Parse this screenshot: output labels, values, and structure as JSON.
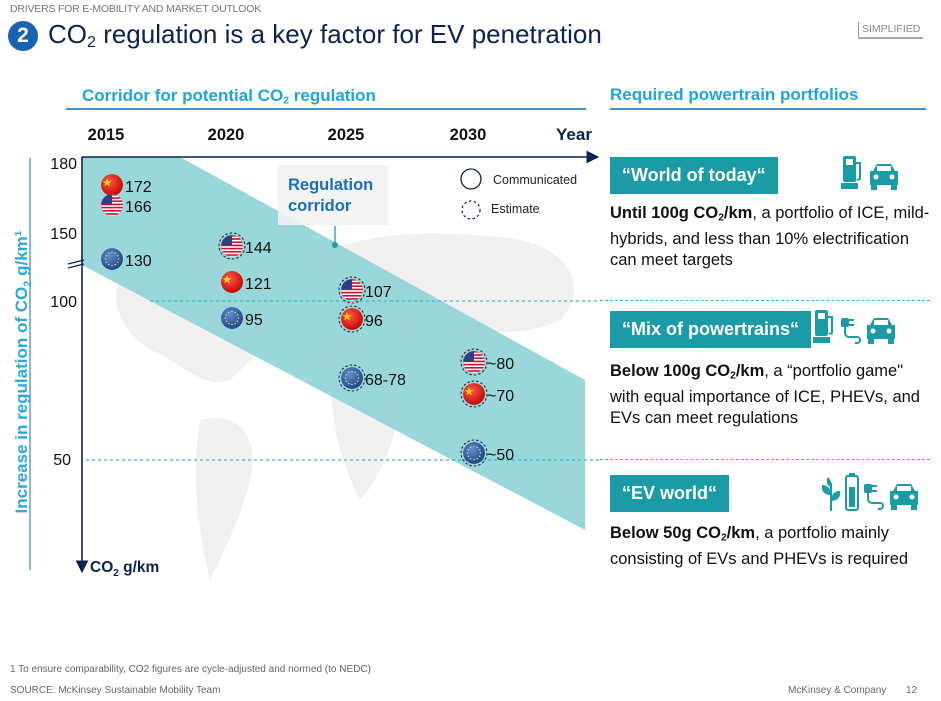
{
  "header": {
    "kicker": "DRIVERS FOR E-MOBILITY AND MARKET OUTLOOK",
    "number": "2",
    "title_pre": "CO",
    "title_sub": "2",
    "title_post": " regulation is a key factor for EV penetration",
    "badge": "SIMPLIFIED"
  },
  "left_section": {
    "heading_pre": "Corridor for potential CO",
    "heading_sub": "2",
    "heading_post": " regulation"
  },
  "chart_data": {
    "type": "scatter",
    "x_ticks": [
      "2015",
      "2020",
      "2025",
      "2030"
    ],
    "xlabel": "Year",
    "y_ticks": [
      180,
      150,
      100,
      50
    ],
    "ylabel_pre": "Increase in regulation of CO",
    "ylabel_sub": "2",
    "ylabel_post": " g/km¹",
    "y_unit_pre": "CO",
    "y_unit_sub": "2",
    "y_unit_post": " g/km",
    "y_axis_break": true,
    "y_inverted": true,
    "corridor_label_line1": "Regulation",
    "corridor_label_line2": "corridor",
    "legend": {
      "communicated": "Communicated",
      "estimate": "Estimate",
      "placement": "top-right"
    },
    "colors": {
      "corridor": "#8fd3d6",
      "axis": "#0b2350",
      "guide": "#3fb8c5"
    },
    "points": [
      {
        "year": "2015",
        "flag": "china-flag",
        "value": 172,
        "label": "172",
        "type": "communicated"
      },
      {
        "year": "2015",
        "flag": "usa-flag",
        "value": 166,
        "label": "166",
        "type": "communicated"
      },
      {
        "year": "2015",
        "flag": "eu-flag",
        "value": 130,
        "label": "130",
        "type": "communicated"
      },
      {
        "year": "2020",
        "flag": "usa-flag",
        "value": 144,
        "label": "144",
        "type": "estimate"
      },
      {
        "year": "2020",
        "flag": "china-flag",
        "value": 121,
        "label": "121",
        "type": "communicated"
      },
      {
        "year": "2020",
        "flag": "eu-flag",
        "value": 95,
        "label": "95",
        "type": "communicated"
      },
      {
        "year": "2025",
        "flag": "usa-flag",
        "value": 107,
        "label": "107",
        "type": "estimate"
      },
      {
        "year": "2025",
        "flag": "china-flag",
        "value": 96,
        "label": "96",
        "type": "estimate"
      },
      {
        "year": "2025",
        "flag": "eu-flag",
        "value": 73,
        "label": "68-78",
        "type": "estimate"
      },
      {
        "year": "2030",
        "flag": "usa-flag",
        "value": 80,
        "label": "~80",
        "type": "estimate"
      },
      {
        "year": "2030",
        "flag": "china-flag",
        "value": 70,
        "label": "~70",
        "type": "estimate"
      },
      {
        "year": "2030",
        "flag": "eu-flag",
        "value": 50,
        "label": "~50",
        "type": "estimate"
      }
    ]
  },
  "right_section": {
    "heading": "Required powertrain portfolios",
    "items": [
      {
        "title": "“World of today“",
        "bold_pre": "Until 100g CO",
        "bold_sub": "2",
        "bold_post": "/km",
        "text": ", a portfolio of ICE, mild-hybrids, and less than 10% electrification can meet targets",
        "icons": [
          "fuel-pump-icon",
          "car-icon"
        ]
      },
      {
        "title": "“Mix of powertrains“",
        "bold_pre": "Below 100g CO",
        "bold_sub": "2",
        "bold_post": "/km",
        "text": ", a “portfolio game\" with equal importance of ICE, PHEVs, and EVs can meet regulations",
        "icons": [
          "fuel-pump-icon",
          "plug-icon",
          "car-icon"
        ]
      },
      {
        "title": "“EV world“",
        "bold_pre": "Below 50g CO",
        "bold_sub": "2",
        "bold_post": "/km",
        "text": ", a portfolio mainly consisting of EVs and PHEVs is required",
        "icons": [
          "plant-icon",
          "battery-icon",
          "plug-icon",
          "car-icon"
        ]
      }
    ],
    "accent": "#1a9ba5"
  },
  "footer": {
    "footnote": "1 To ensure comparability, CO2 figures are cycle-adjusted and normed (to NEDC)",
    "source": "SOURCE: McKinsey Sustainable Mobility Team",
    "company": "McKinsey & Company",
    "page": "12"
  }
}
